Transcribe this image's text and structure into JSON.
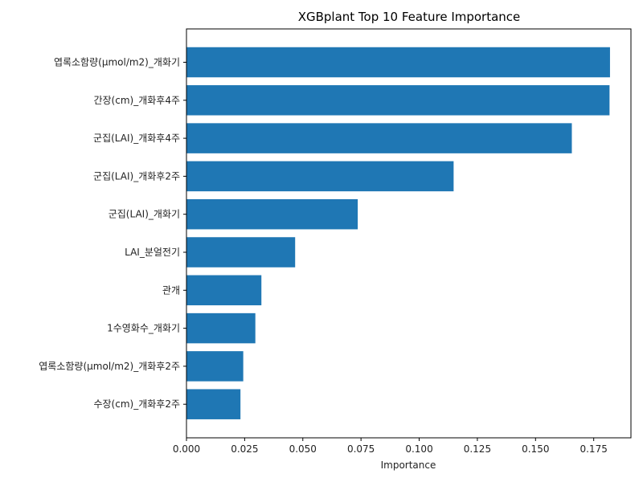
{
  "chart_data": {
    "type": "bar",
    "orientation": "horizontal",
    "title": "XGBplant Top 10 Feature Importance",
    "xlabel": "Importance",
    "ylabel": "",
    "xlim": [
      0,
      0.191
    ],
    "xticks": [
      "0.000",
      "0.025",
      "0.050",
      "0.075",
      "0.100",
      "0.125",
      "0.150",
      "0.175"
    ],
    "bar_color": "#1f77b4",
    "grid": false,
    "categories": [
      "엽록소함량(μmol/m2)_개화기",
      "간장(cm)_개화후4주",
      "군집(LAI)_개화후4주",
      "군집(LAI)_개화후2주",
      "군집(LAI)_개화기",
      "LAI_분얼전기",
      "관개",
      "1수영화수_개화기",
      "엽록소함량(μmol/m2)_개화후2주",
      "수장(cm)_개화후2주"
    ],
    "values": [
      0.182,
      0.1818,
      0.1656,
      0.1148,
      0.0736,
      0.0467,
      0.0322,
      0.0296,
      0.0244,
      0.0232
    ]
  }
}
